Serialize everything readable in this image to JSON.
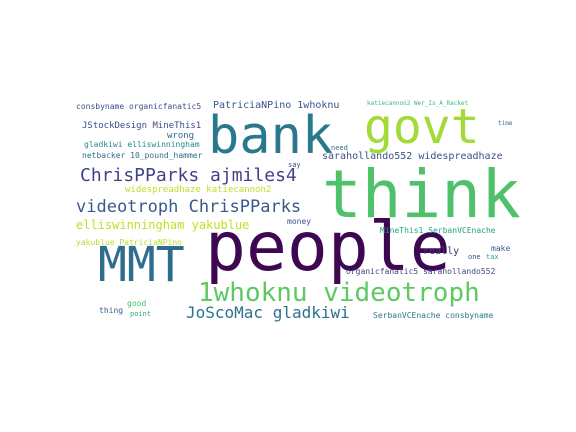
{
  "cloud": {
    "words": [
      {
        "text": "think",
        "color": "#4fc16b"
      },
      {
        "text": "people",
        "color": "#3e0751"
      },
      {
        "text": "bank",
        "color": "#2a788e"
      },
      {
        "text": "govt",
        "color": "#a2da37"
      },
      {
        "text": "MMT",
        "color": "#2f6c8e"
      },
      {
        "text": "1whoknu videotroph",
        "color": "#5ec962"
      },
      {
        "text": "videotroph ChrisPParks",
        "color": "#38598c"
      },
      {
        "text": "ChrisPParks ajmiles4",
        "color": "#404387"
      },
      {
        "text": "JoScoMac gladkiwi",
        "color": "#2c728e"
      },
      {
        "text": "elliswinningham yakublue",
        "color": "#c0df25"
      },
      {
        "text": "PatriciaNPino 1whoknu",
        "color": "#3a538b"
      },
      {
        "text": "sarahollando552 widespreadhaze",
        "color": "#3b518b"
      },
      {
        "text": "JStockDesign MineThis1",
        "color": "#3e4989"
      },
      {
        "text": "widespreadhaze katiecannon2",
        "color": "#bddf26"
      },
      {
        "text": "gladkiwi elliswinningham",
        "color": "#23898e"
      },
      {
        "text": "netbacker 10_pound_hammer",
        "color": "#2e6e8e"
      },
      {
        "text": "consbyname organicfanatic5",
        "color": "#3c4f8a"
      },
      {
        "text": "yakublue PatriciaNPino",
        "color": "#b5de2b"
      },
      {
        "text": "MineThis1 SerbanVCEnache",
        "color": "#20a386"
      },
      {
        "text": "organicfanatic5 sarahollando552",
        "color": "#414487"
      },
      {
        "text": "SerbanVCEnache consbyname",
        "color": "#2a788e"
      },
      {
        "text": "katiecannon2 Wer_Is_A_Racket",
        "color": "#3aba76"
      },
      {
        "text": "wrong",
        "color": "#31688e"
      },
      {
        "text": "money",
        "color": "#3a548c"
      },
      {
        "text": "really",
        "color": "#46327e"
      },
      {
        "text": "make",
        "color": "#355f8d"
      },
      {
        "text": "good",
        "color": "#44bf70"
      },
      {
        "text": "thing",
        "color": "#365c8d"
      },
      {
        "text": "point",
        "color": "#27ad81"
      },
      {
        "text": "need",
        "color": "#2c728e"
      },
      {
        "text": "say",
        "color": "#3f4889"
      },
      {
        "text": "one",
        "color": "#3b528b"
      },
      {
        "text": "tax",
        "color": "#22a884"
      },
      {
        "text": "time",
        "color": "#2a788e"
      }
    ]
  }
}
